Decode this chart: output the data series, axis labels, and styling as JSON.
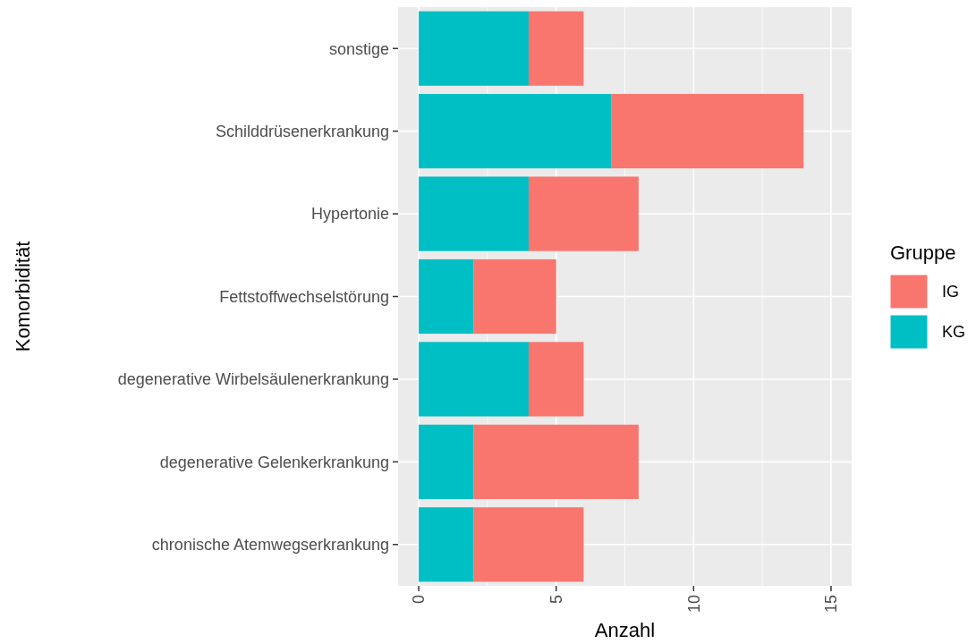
{
  "chart_data": {
    "type": "bar",
    "orientation": "horizontal",
    "stacked": true,
    "xlabel": "Anzahl",
    "ylabel": "Komorbidität",
    "legend_title": "Gruppe",
    "legend": "right",
    "categories": [
      "sonstige",
      "Schilddrüsenerkrankung",
      "Hypertonie",
      "Fettstoffwechselstörung",
      "degenerative Wirbelsäulenerkrankung",
      "degenerative Gelenkerkrankung",
      "chronische Atemwegserkrankung"
    ],
    "series": [
      {
        "name": "KG",
        "color": "#00bfc4",
        "values": [
          4,
          7,
          4,
          2,
          4,
          2,
          2
        ]
      },
      {
        "name": "IG",
        "color": "#f8766d",
        "values": [
          2,
          7,
          4,
          3,
          2,
          6,
          4
        ]
      }
    ],
    "xlim": [
      -0.75,
      15.75
    ],
    "xticks": [
      0,
      {
        "value": 2.5,
        "label": null
      },
      5,
      {
        "value": 7.5,
        "label": null
      },
      10,
      {
        "value": 12.5,
        "label": null
      },
      15
    ],
    "grid": true
  }
}
